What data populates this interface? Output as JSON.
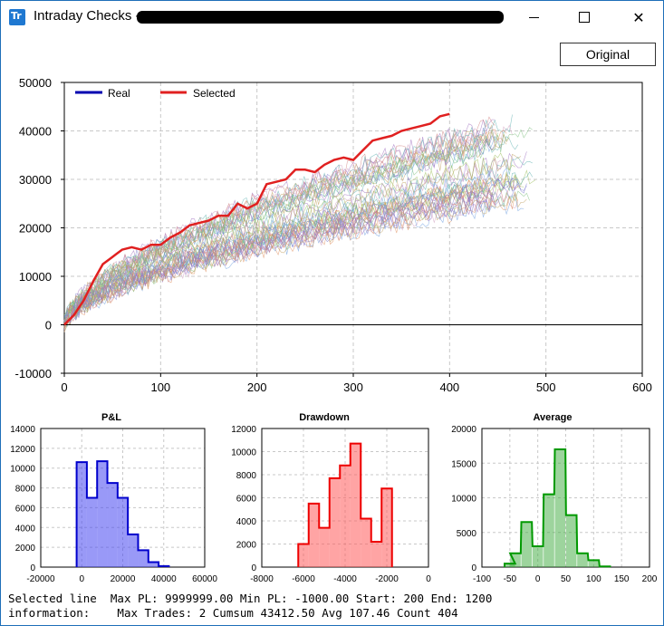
{
  "window": {
    "app_icon_text": "Tr",
    "title": "Intraday Checks - ",
    "controls": {
      "minimize": "minimize",
      "maximize": "maximize",
      "close": "✕"
    }
  },
  "toolbar": {
    "original_label": "Original"
  },
  "main_chart": {
    "legend": [
      {
        "name": "Real",
        "color": "#0000b0"
      },
      {
        "name": "Selected",
        "color": "#e02020"
      }
    ],
    "y_ticks": [
      "50000",
      "40000",
      "30000",
      "20000",
      "10000",
      "0",
      "-10000"
    ],
    "x_ticks": [
      "0",
      "100",
      "200",
      "300",
      "400",
      "500",
      "600"
    ]
  },
  "chart_data": [
    {
      "type": "line",
      "title": "",
      "xlabel": "",
      "ylabel": "",
      "xlim": [
        0,
        600
      ],
      "ylim": [
        -10000,
        50000
      ],
      "grid": true,
      "legend_position": "top-left",
      "series": [
        {
          "name": "Selected",
          "color": "#e02020",
          "x": [
            0,
            10,
            20,
            30,
            40,
            50,
            60,
            70,
            80,
            90,
            100,
            110,
            120,
            130,
            140,
            150,
            160,
            170,
            180,
            190,
            200,
            210,
            220,
            230,
            240,
            250,
            260,
            270,
            280,
            290,
            300,
            310,
            320,
            330,
            340,
            350,
            360,
            370,
            380,
            390,
            400
          ],
          "y": [
            0,
            2000,
            5000,
            9000,
            12500,
            14000,
            15500,
            16000,
            15500,
            16500,
            16500,
            18000,
            19000,
            20500,
            21000,
            21500,
            22500,
            22500,
            25000,
            24000,
            25000,
            29000,
            29500,
            30000,
            32000,
            32000,
            31500,
            33000,
            34000,
            34500,
            34000,
            36000,
            38000,
            38500,
            39000,
            40000,
            40500,
            41000,
            41500,
            43000,
            43500
          ]
        }
      ]
    },
    {
      "type": "bar",
      "title": "P&L",
      "categories": [
        "0",
        "5000",
        "10000",
        "15000",
        "20000",
        "25000",
        "30000",
        "35000",
        "40000"
      ],
      "values": [
        10600,
        7000,
        10700,
        8500,
        7000,
        3300,
        1700,
        500,
        100
      ],
      "xlim": [
        -20000,
        60000
      ],
      "ylim": [
        0,
        14000
      ],
      "x_ticks": [
        "-20000",
        "0",
        "20000",
        "40000",
        "60000"
      ],
      "y_ticks": [
        "0",
        "2000",
        "4000",
        "6000",
        "8000",
        "10000",
        "12000",
        "14000"
      ],
      "color": "#0000cc"
    },
    {
      "type": "bar",
      "title": "Drawdown",
      "categories": [
        "-6000",
        "-5500",
        "-5000",
        "-4500",
        "-4000",
        "-3500",
        "-3000",
        "-2500",
        "-2000"
      ],
      "values": [
        2000,
        5500,
        3400,
        7700,
        8800,
        10700,
        4200,
        2200,
        6800
      ],
      "xlim": [
        -8000,
        0
      ],
      "ylim": [
        0,
        12000
      ],
      "x_ticks": [
        "-8000",
        "-6000",
        "-4000",
        "-2000",
        "0"
      ],
      "y_ticks": [
        "0",
        "2000",
        "4000",
        "6000",
        "8000",
        "10000",
        "12000"
      ],
      "color": "#ee0000"
    },
    {
      "type": "bar",
      "title": "Average",
      "categories": [
        "-50",
        "-40",
        "-20",
        "0",
        "20",
        "40",
        "60",
        "80",
        "100",
        "120"
      ],
      "values": [
        500,
        2000,
        6500,
        3000,
        10500,
        17000,
        7500,
        2000,
        1000,
        100
      ],
      "xlim": [
        -100,
        200
      ],
      "ylim": [
        0,
        20000
      ],
      "x_ticks": [
        "-100",
        "-50",
        "0",
        "50",
        "100",
        "150",
        "200"
      ],
      "y_ticks": [
        "0",
        "5000",
        "10000",
        "15000",
        "20000"
      ],
      "color": "#009900"
    }
  ],
  "status": {
    "line1_label": "Selected line",
    "line1_value": "Max PL: 9999999.00 Min PL: -1000.00 Start: 200 End: 1200",
    "line2_label": "information:",
    "line2_value": "Max Trades: 2 Cumsum 43412.50 Avg 107.46 Count 404"
  }
}
